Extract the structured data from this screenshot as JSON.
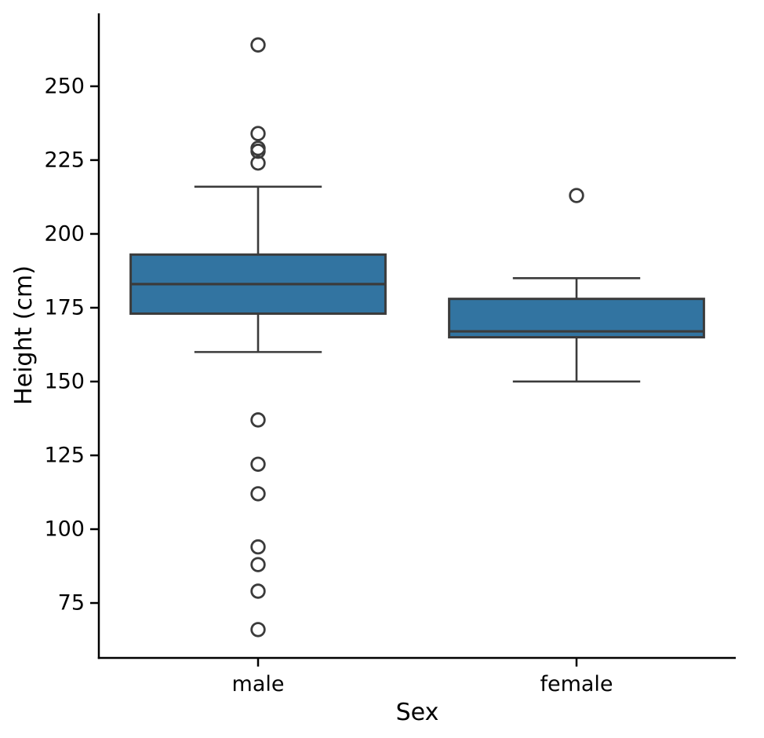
{
  "chart_data": {
    "type": "boxplot",
    "title": "",
    "xlabel": "Sex",
    "ylabel": "Height (cm)",
    "categories": [
      "male",
      "female"
    ],
    "y_ticks": [
      75,
      100,
      125,
      150,
      175,
      200,
      225,
      250
    ],
    "ylim": [
      56.4,
      274.7
    ],
    "grid": false,
    "legend": false,
    "boxes": [
      {
        "category": "male",
        "whisker_low": 160,
        "q1": 173,
        "median": 183,
        "q3": 193,
        "whisker_high": 216,
        "outliers": [
          264,
          234,
          229,
          228,
          224,
          137,
          122,
          112,
          94,
          88,
          79,
          66
        ]
      },
      {
        "category": "female",
        "whisker_low": 150,
        "q1": 165,
        "median": 167,
        "q3": 178,
        "whisker_high": 185,
        "outliers": [
          213
        ]
      }
    ],
    "colors": {
      "box_fill": "#3274a1",
      "box_edge": "#3b3b3b",
      "median": "#3b3b3b",
      "whisker": "#3b3b3b",
      "outlier_edge": "#3b3b3b",
      "axis": "#000000",
      "text": "#000000"
    }
  }
}
